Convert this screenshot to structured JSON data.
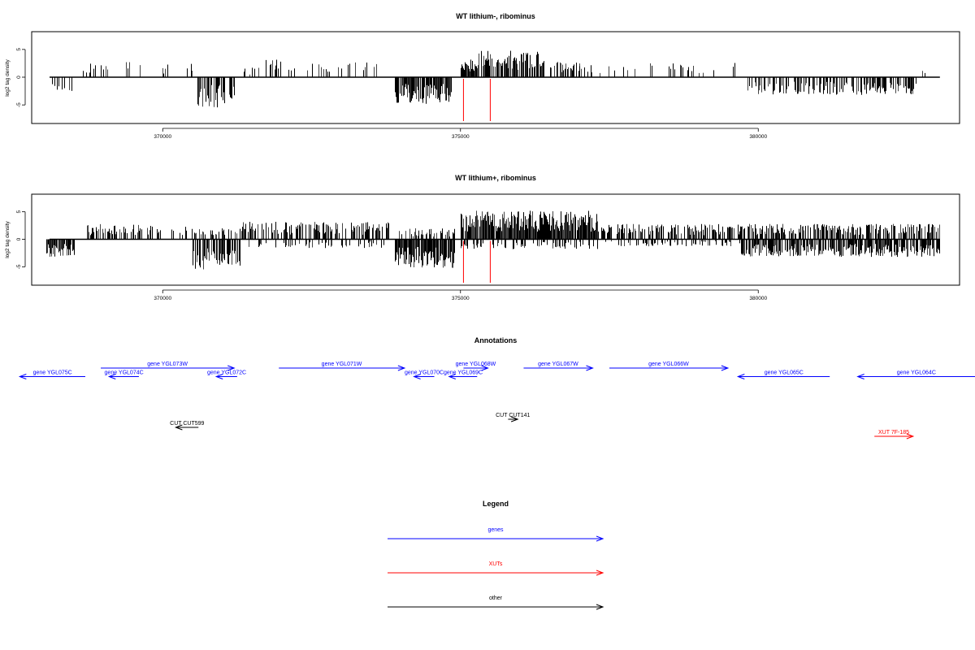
{
  "colors": {
    "genes": "#0000ff",
    "xuts": "#ff0000",
    "other": "#000000",
    "marker": "#ff0000",
    "frame": "#000000",
    "bars": "#000000"
  },
  "chart_data": [
    {
      "type": "bar",
      "title": "WT lithium-, ribominus",
      "ylabel": "log2 tag density",
      "xlim": [
        367800,
        383380
      ],
      "ylim": [
        -8.2,
        8.2
      ],
      "yticks": [
        5,
        0,
        -5
      ],
      "yticklabels": [
        "5",
        "0",
        "-5"
      ],
      "xticks": [
        370000,
        375000,
        380000
      ],
      "xticklabels": [
        "370000",
        "375000",
        "380000"
      ],
      "baseline_range": [
        368100,
        383050
      ],
      "red_markers": [
        375050,
        375500
      ],
      "coverage_regions": [
        {
          "start": 368050,
          "end": 368500,
          "dir": -1,
          "amp": 2.5,
          "density": 0.2
        },
        {
          "start": 368650,
          "end": 369700,
          "dir": 1,
          "amp": 2.8,
          "density": 0.2
        },
        {
          "start": 369800,
          "end": 370500,
          "dir": 1,
          "amp": 2.5,
          "density": 0.18
        },
        {
          "start": 370550,
          "end": 371200,
          "dir": -1,
          "amp": 5.5,
          "density": 0.55
        },
        {
          "start": 371300,
          "end": 371700,
          "dir": 1,
          "amp": 1.8,
          "density": 0.12
        },
        {
          "start": 371700,
          "end": 372300,
          "dir": 1,
          "amp": 3.2,
          "density": 0.35
        },
        {
          "start": 372400,
          "end": 373700,
          "dir": 1,
          "amp": 2.8,
          "density": 0.2
        },
        {
          "start": 373900,
          "end": 374850,
          "dir": -1,
          "amp": 4.8,
          "density": 0.9
        },
        {
          "start": 375000,
          "end": 375300,
          "dir": 1,
          "amp": 3.2,
          "density": 0.9
        },
        {
          "start": 375300,
          "end": 376400,
          "dir": 1,
          "amp": 4.8,
          "density": 0.85
        },
        {
          "start": 376500,
          "end": 377000,
          "dir": 1,
          "amp": 2.8,
          "density": 0.5
        },
        {
          "start": 377000,
          "end": 377500,
          "dir": 1,
          "amp": 2.5,
          "density": 0.25
        },
        {
          "start": 377500,
          "end": 379700,
          "dir": 1,
          "amp": 2.6,
          "density": 0.1
        },
        {
          "start": 379800,
          "end": 382700,
          "dir": -1,
          "amp": 3.2,
          "density": 0.55
        },
        {
          "start": 382700,
          "end": 383050,
          "dir": 1,
          "amp": 1.6,
          "density": 0.1
        }
      ]
    },
    {
      "type": "bar",
      "title": "WT lithium+, ribominus",
      "ylabel": "log2 tag density",
      "xlim": [
        367800,
        383380
      ],
      "ylim": [
        -8.2,
        8.2
      ],
      "yticks": [
        5,
        0,
        -5
      ],
      "yticklabels": [
        "5",
        "0",
        "-5"
      ],
      "xticks": [
        370000,
        375000,
        380000
      ],
      "xticklabels": [
        "370000",
        "375000",
        "380000"
      ],
      "baseline_range": [
        368100,
        383050
      ],
      "red_markers": [
        375050,
        375500
      ],
      "coverage_regions": [
        {
          "start": 368050,
          "end": 368550,
          "dir": -1,
          "amp": 3.2,
          "density": 0.9
        },
        {
          "start": 368700,
          "end": 369800,
          "dir": 1,
          "amp": 2.8,
          "density": 0.45
        },
        {
          "start": 369800,
          "end": 370500,
          "dir": 1,
          "amp": 2.3,
          "density": 0.3
        },
        {
          "start": 370500,
          "end": 371300,
          "dir": -1,
          "amp": 5.5,
          "density": 0.75
        },
        {
          "start": 370500,
          "end": 371300,
          "dir": 1,
          "amp": 2.0,
          "density": 0.35
        },
        {
          "start": 371300,
          "end": 373800,
          "dir": 1,
          "amp": 3.2,
          "density": 0.55
        },
        {
          "start": 371300,
          "end": 373800,
          "dir": -1,
          "amp": 1.6,
          "density": 0.25
        },
        {
          "start": 373900,
          "end": 374900,
          "dir": -1,
          "amp": 5.2,
          "density": 0.95
        },
        {
          "start": 373900,
          "end": 374900,
          "dir": 1,
          "amp": 2.0,
          "density": 0.4
        },
        {
          "start": 375000,
          "end": 377300,
          "dir": 1,
          "amp": 5.2,
          "density": 0.95
        },
        {
          "start": 375000,
          "end": 377300,
          "dir": -1,
          "amp": 1.8,
          "density": 0.35
        },
        {
          "start": 377300,
          "end": 379700,
          "dir": 1,
          "amp": 2.8,
          "density": 0.6
        },
        {
          "start": 377300,
          "end": 379700,
          "dir": -1,
          "amp": 1.3,
          "density": 0.25
        },
        {
          "start": 379700,
          "end": 383050,
          "dir": -1,
          "amp": 3.2,
          "density": 0.8
        },
        {
          "start": 379700,
          "end": 383050,
          "dir": 1,
          "amp": 2.8,
          "density": 0.65
        }
      ]
    }
  ],
  "annotations": {
    "title": "Annotations",
    "xlim": [
      367800,
      383380
    ],
    "features": [
      {
        "label": "gene YGL075C",
        "start": 367600,
        "end": 368700,
        "strand": -1,
        "type": "genes",
        "row": 2
      },
      {
        "label": "gene YGL074C",
        "start": 369100,
        "end": 369600,
        "strand": -1,
        "type": "genes",
        "row": 2
      },
      {
        "label": "gene YGL073W",
        "start": 368960,
        "end": 371200,
        "strand": 1,
        "type": "genes",
        "row": 1
      },
      {
        "label": "gene YGL072C",
        "start": 370900,
        "end": 371250,
        "strand": -1,
        "type": "genes",
        "row": 2
      },
      {
        "label": "gene YGL071W",
        "start": 371950,
        "end": 374060,
        "strand": 1,
        "type": "genes",
        "row": 1
      },
      {
        "label": "gene YGL070C",
        "start": 374220,
        "end": 374560,
        "strand": -1,
        "type": "genes",
        "row": 2
      },
      {
        "label": "gene YGL069C",
        "start": 374810,
        "end": 375280,
        "strand": -1,
        "type": "genes",
        "row": 2
      },
      {
        "label": "gene YGL068W",
        "start": 375050,
        "end": 375460,
        "strand": 1,
        "type": "genes",
        "row": 1
      },
      {
        "label": "gene YGL067W",
        "start": 376060,
        "end": 377220,
        "strand": 1,
        "type": "genes",
        "row": 1
      },
      {
        "label": "gene YGL066W",
        "start": 377500,
        "end": 379490,
        "strand": 1,
        "type": "genes",
        "row": 1
      },
      {
        "label": "gene YGL065C",
        "start": 379660,
        "end": 381200,
        "strand": -1,
        "type": "genes",
        "row": 2
      },
      {
        "label": "gene YGL064C",
        "start": 381670,
        "end": 383800,
        "strand": -1,
        "type": "genes",
        "row": 2
      },
      {
        "label": "CUT CUT599",
        "start": 370220,
        "end": 370600,
        "strand": -1,
        "type": "other",
        "row": 3
      },
      {
        "label": "CUT CUT141",
        "start": 375800,
        "end": 375960,
        "strand": 1,
        "type": "other",
        "row": 4
      },
      {
        "label": "XUT 7F-185",
        "start": 381950,
        "end": 382600,
        "strand": 1,
        "type": "xuts",
        "row": 5
      }
    ]
  },
  "legend": {
    "title": "Legend",
    "items": [
      {
        "label": "genes",
        "type": "genes"
      },
      {
        "label": "XUTs",
        "type": "xuts"
      },
      {
        "label": "other",
        "type": "other"
      }
    ]
  }
}
